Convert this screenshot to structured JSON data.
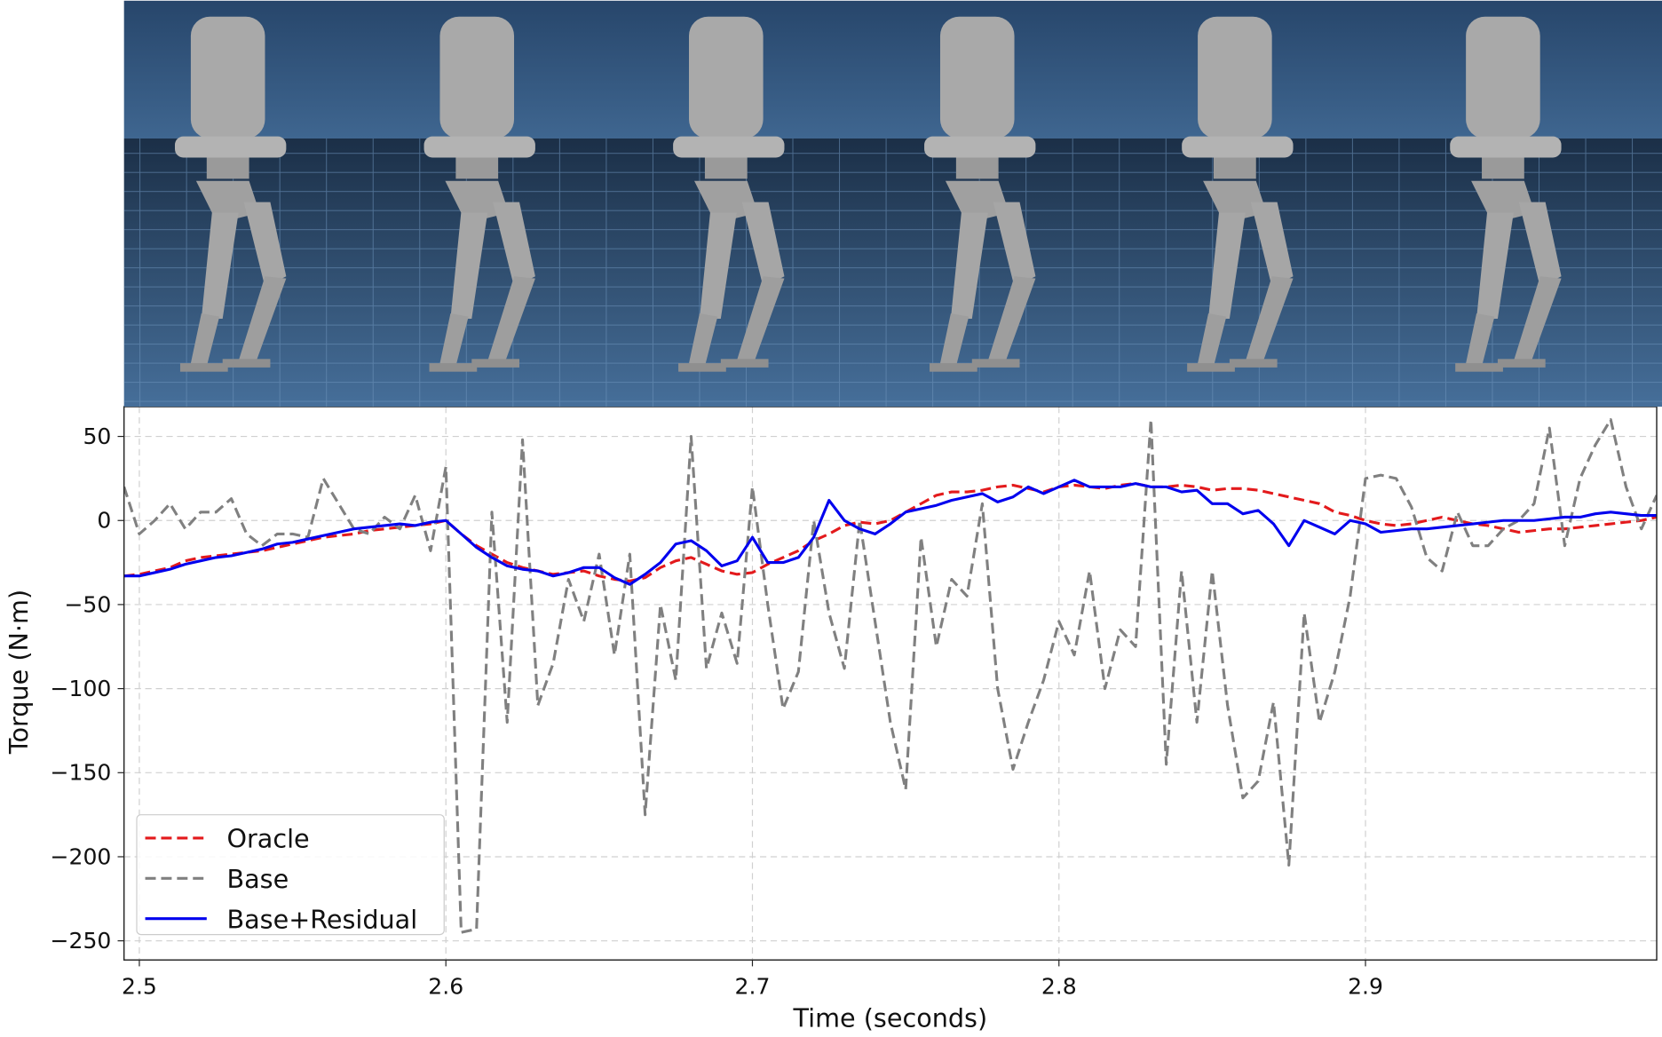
{
  "chart_data": {
    "type": "line",
    "xlabel": "Time (seconds)",
    "ylabel": "Torque (N·m)",
    "x": [
      2.495,
      2.5,
      2.505,
      2.51,
      2.515,
      2.52,
      2.525,
      2.53,
      2.535,
      2.54,
      2.545,
      2.55,
      2.555,
      2.56,
      2.565,
      2.57,
      2.575,
      2.58,
      2.585,
      2.59,
      2.595,
      2.6,
      2.605,
      2.61,
      2.615,
      2.62,
      2.625,
      2.63,
      2.635,
      2.64,
      2.645,
      2.65,
      2.655,
      2.66,
      2.665,
      2.67,
      2.675,
      2.68,
      2.685,
      2.69,
      2.695,
      2.7,
      2.705,
      2.71,
      2.715,
      2.72,
      2.725,
      2.73,
      2.735,
      2.74,
      2.745,
      2.75,
      2.755,
      2.76,
      2.765,
      2.77,
      2.775,
      2.78,
      2.785,
      2.79,
      2.795,
      2.8,
      2.805,
      2.81,
      2.815,
      2.82,
      2.825,
      2.83,
      2.835,
      2.84,
      2.845,
      2.85,
      2.855,
      2.86,
      2.865,
      2.87,
      2.875,
      2.88,
      2.885,
      2.89,
      2.895,
      2.9,
      2.905,
      2.91,
      2.915,
      2.92,
      2.925,
      2.93,
      2.935,
      2.94,
      2.945,
      2.95,
      2.955,
      2.96,
      2.965,
      2.97,
      2.975,
      2.98,
      2.985,
      2.99,
      2.995
    ],
    "series": [
      {
        "name": "Oracle",
        "color": "#e31a1c",
        "linestyle": "dashed",
        "values": [
          -33,
          -32,
          -30,
          -28,
          -24,
          -22,
          -21,
          -20,
          -19,
          -18,
          -16,
          -14,
          -12,
          -10,
          -9,
          -8,
          -6,
          -5,
          -4,
          -3,
          -2,
          0,
          -8,
          -15,
          -20,
          -25,
          -28,
          -30,
          -32,
          -31,
          -30,
          -33,
          -35,
          -36,
          -34,
          -28,
          -24,
          -22,
          -26,
          -30,
          -32,
          -31,
          -26,
          -22,
          -18,
          -12,
          -8,
          -3,
          -1,
          -2,
          0,
          5,
          10,
          15,
          17,
          17,
          18,
          20,
          21,
          19,
          17,
          20,
          21,
          20,
          19,
          21,
          22,
          20,
          20,
          21,
          20,
          18,
          19,
          19,
          18,
          16,
          14,
          12,
          10,
          5,
          3,
          0,
          -2,
          -3,
          -2,
          0,
          2,
          0,
          -2,
          -3,
          -5,
          -7,
          -6,
          -5,
          -5,
          -4,
          -3,
          -2,
          -1,
          0,
          2
        ]
      },
      {
        "name": "Base",
        "color": "#808080",
        "linestyle": "dashed",
        "values": [
          20,
          -8,
          0,
          10,
          -5,
          5,
          5,
          13,
          -8,
          -15,
          -8,
          -8,
          -10,
          25,
          10,
          -5,
          -8,
          2,
          -5,
          15,
          -18,
          32,
          -245,
          -243,
          5,
          -120,
          48,
          -110,
          -85,
          -35,
          -60,
          -20,
          -80,
          -20,
          -175,
          -50,
          -95,
          50,
          -88,
          -55,
          -85,
          20,
          -50,
          -112,
          -90,
          0,
          -55,
          -88,
          0,
          -60,
          -120,
          -160,
          -10,
          -75,
          -35,
          -45,
          10,
          -100,
          -148,
          -120,
          -95,
          -60,
          -80,
          -30,
          -100,
          -65,
          -75,
          60,
          -145,
          -30,
          -120,
          -30,
          -110,
          -165,
          -155,
          -108,
          -205,
          -55,
          -120,
          -90,
          -45,
          25,
          27,
          25,
          8,
          -22,
          -30,
          5,
          -15,
          -15,
          -5,
          0,
          10,
          55,
          -15,
          25,
          45,
          60,
          20,
          -5,
          15
        ]
      },
      {
        "name": "Base+Residual",
        "color": "#0000ee",
        "linestyle": "solid",
        "values": [
          -33,
          -33,
          -31,
          -29,
          -26,
          -24,
          -22,
          -21,
          -19,
          -17,
          -14,
          -13,
          -11,
          -9,
          -7,
          -5,
          -4,
          -3,
          -2,
          -3,
          -1,
          0,
          -8,
          -16,
          -22,
          -27,
          -29,
          -30,
          -33,
          -31,
          -28,
          -28,
          -34,
          -38,
          -32,
          -25,
          -14,
          -12,
          -18,
          -27,
          -24,
          -10,
          -25,
          -25,
          -22,
          -10,
          12,
          0,
          -5,
          -8,
          -2,
          5,
          7,
          9,
          12,
          14,
          16,
          11,
          14,
          20,
          16,
          20,
          24,
          20,
          20,
          20,
          22,
          20,
          20,
          17,
          18,
          10,
          10,
          4,
          6,
          -2,
          -15,
          0,
          -4,
          -8,
          0,
          -2,
          -7,
          -6,
          -5,
          -5,
          -4,
          -3,
          -2,
          -1,
          0,
          0,
          0,
          1,
          2,
          2,
          4,
          5,
          4,
          3,
          3
        ]
      }
    ],
    "xlim": [
      2.495,
      2.995
    ],
    "ylim": [
      -261.4,
      67.7
    ],
    "xticks": [
      2.5,
      2.6,
      2.7,
      2.8,
      2.9
    ],
    "yticks": [
      {
        "value": -250,
        "label": "−250"
      },
      {
        "value": -200,
        "label": "−200"
      },
      {
        "value": -150,
        "label": "−150"
      },
      {
        "value": -100,
        "label": "−100"
      },
      {
        "value": -50,
        "label": "−50"
      },
      0,
      50
    ],
    "grid": true,
    "legend": "lower left"
  }
}
